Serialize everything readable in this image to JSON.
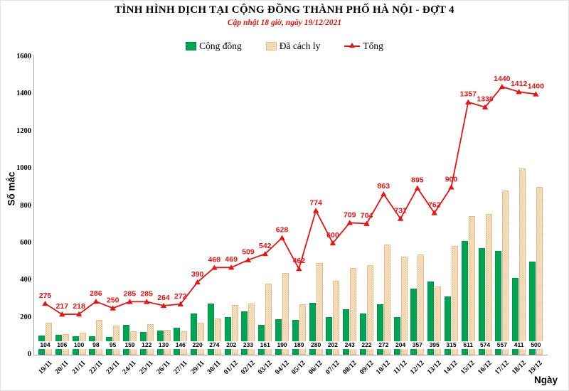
{
  "title": "TÌNH HÌNH DỊCH TẠI CỘNG ĐỒNG THÀNH PHỐ HÀ NỘI - ĐỢT 4",
  "subtitle": "Cập nhật 18 giờ, ngày 19/12/2021",
  "legend": {
    "cong_dong": "Cộng đồng",
    "da_cach_ly": "Đã cách ly",
    "tong": "Tổng"
  },
  "colors": {
    "green": "#00A551",
    "tan_fill": "#FDF1DF",
    "tan_dot": "#F1C291",
    "tan_border": "#ECBC86",
    "red": "#EE1111"
  },
  "chart_data": {
    "type": "bar",
    "subtype": "grouped bars with total line overlay",
    "title": "TÌNH HÌNH DỊCH TẠI CỘNG ĐỒNG THÀNH PHỐ HÀ NỘI - ĐỢT 4",
    "subtitle": "Cập nhật 18 giờ, ngày 19/12/2021",
    "xlabel": "Ngày",
    "ylabel": "Số mắc",
    "ylim": [
      0,
      1600
    ],
    "yticks": [
      0,
      200,
      400,
      600,
      800,
      1000,
      1200,
      1400,
      1600
    ],
    "grid": false,
    "legend_position": "top center",
    "categories": [
      "19/11",
      "20/11",
      "21/11",
      "22/11",
      "23/11",
      "24/11",
      "25/11",
      "26/11",
      "27/11",
      "29/11",
      "30/11",
      "01/12",
      "02/12",
      "03/12",
      "04/12",
      "05/12",
      "06/12",
      "07/12",
      "08/12",
      "09/12",
      "10/12",
      "11/12",
      "12/12",
      "13/12",
      "14/12",
      "15/12",
      "16/12",
      "17/12",
      "18/12",
      "19/12"
    ],
    "series": [
      {
        "name": "Cộng đồng",
        "type": "bar",
        "color": "#00A551",
        "labels_shown": true,
        "values": [
          104,
          106,
          100,
          98,
          95,
          159,
          122,
          130,
          146,
          220,
          274,
          202,
          233,
          161,
          190,
          189,
          280,
          202,
          243,
          222,
          272,
          204,
          357,
          395,
          315,
          611,
          574,
          557,
          411,
          500
        ]
      },
      {
        "name": "Đã cách ly",
        "type": "bar",
        "color": "#F1C291",
        "labels_shown": false,
        "values": [
          171,
          111,
          118,
          188,
          155,
          126,
          163,
          134,
          126,
          170,
          194,
          267,
          276,
          381,
          438,
          273,
          494,
          398,
          466,
          482,
          591,
          527,
          538,
          367,
          585,
          746,
          756,
          883,
          1001,
          900
        ]
      },
      {
        "name": "Tổng",
        "type": "line",
        "marker": "triangle-up",
        "color": "#EE1111",
        "labels_shown": true,
        "values": [
          275,
          217,
          218,
          286,
          250,
          285,
          285,
          264,
          272,
          390,
          468,
          469,
          509,
          542,
          628,
          462,
          774,
          600,
          709,
          704,
          863,
          731,
          895,
          762,
          900,
          1357,
          1330,
          1440,
          1412,
          1400
        ]
      }
    ]
  }
}
